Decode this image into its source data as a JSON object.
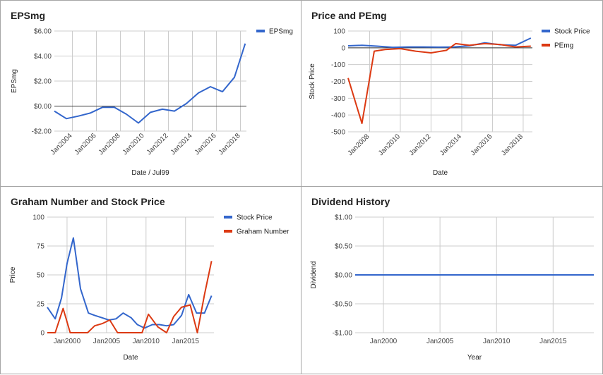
{
  "chart_data": [
    {
      "type": "line",
      "title": "EPSmg",
      "xlabel": "Date / Jul99",
      "ylabel": "EPSmg",
      "xlim": [
        2002.5,
        2018.5
      ],
      "ylim": [
        -2,
        6
      ],
      "yticks": [
        -2,
        0,
        2,
        4,
        6
      ],
      "ytick_labels": [
        "-$2.00",
        "$0.00",
        "$2.00",
        "$4.00",
        "$6.00"
      ],
      "xticks": [
        2004,
        2006,
        2008,
        2010,
        2012,
        2014,
        2016,
        2018
      ],
      "xtick_labels": [
        "Jan2004",
        "Jan2006",
        "Jan2008",
        "Jan2010",
        "Jan2012",
        "Jan2014",
        "Jan2016",
        "Jan2018"
      ],
      "xtick_rotate": true,
      "zero_line": true,
      "grid": true,
      "legend_position": "right",
      "series": [
        {
          "name": "EPSmg",
          "color": "#3366cc",
          "x": [
            2002.5,
            2003.5,
            2004.5,
            2005.5,
            2006.5,
            2007.5,
            2008.5,
            2009.5,
            2010.5,
            2011.5,
            2012.5,
            2013.5,
            2014.5,
            2015.5,
            2016.5,
            2017.5,
            2018.4
          ],
          "y": [
            -0.4,
            -1.0,
            -0.8,
            -0.55,
            -0.1,
            -0.1,
            -0.65,
            -1.35,
            -0.5,
            -0.25,
            -0.4,
            0.2,
            1.05,
            1.55,
            1.15,
            2.3,
            5.0
          ]
        }
      ]
    },
    {
      "type": "line",
      "title": "Price and PEmg",
      "xlabel": "Date",
      "ylabel": "Stock Price",
      "xlim": [
        2006.6,
        2018.6
      ],
      "ylim": [
        -500,
        100
      ],
      "yticks": [
        -500,
        -400,
        -300,
        -200,
        -100,
        0,
        100
      ],
      "ytick_labels": [
        "-500",
        "-400",
        "-300",
        "-200",
        "-100",
        "0",
        "100"
      ],
      "xticks": [
        2008,
        2010,
        2012,
        2014,
        2016,
        2018
      ],
      "xtick_labels": [
        "Jan2008",
        "Jan2010",
        "Jan2012",
        "Jan2014",
        "Jan2016",
        "Jan2018"
      ],
      "xtick_rotate": true,
      "zero_line": true,
      "grid": true,
      "legend_position": "right",
      "series": [
        {
          "name": "Stock Price",
          "color": "#3366cc",
          "x": [
            2006.6,
            2007.5,
            2008.5,
            2009.5,
            2010.5,
            2011.5,
            2012.5,
            2013.5,
            2014.5,
            2015.5,
            2016.5,
            2017.5,
            2018.5
          ],
          "y": [
            12,
            15,
            10,
            3,
            5,
            5,
            4,
            5,
            12,
            30,
            18,
            15,
            58
          ]
        },
        {
          "name": "PEmg",
          "color": "#dc3912",
          "x": [
            2006.6,
            2007.5,
            2008.3,
            2009.0,
            2010.0,
            2011.0,
            2012.0,
            2013.0,
            2013.6,
            2014.5,
            2015.5,
            2016.5,
            2017.5,
            2018.5
          ],
          "y": [
            -180,
            -450,
            -20,
            -10,
            -5,
            -20,
            -30,
            -15,
            25,
            15,
            25,
            20,
            5,
            10
          ]
        }
      ]
    },
    {
      "type": "line",
      "title": "Graham Number and Stock Price",
      "xlabel": "Date",
      "ylabel": "Price",
      "xlim": [
        1997.5,
        2018.6
      ],
      "ylim": [
        0,
        100
      ],
      "yticks": [
        0,
        25,
        50,
        75,
        100
      ],
      "ytick_labels": [
        "0",
        "25",
        "50",
        "75",
        "100"
      ],
      "xticks": [
        2000,
        2005,
        2010,
        2015
      ],
      "xtick_labels": [
        "Jan2000",
        "Jan2005",
        "Jan2010",
        "Jan2015"
      ],
      "xtick_rotate": false,
      "zero_line": false,
      "grid": true,
      "legend_position": "right",
      "series": [
        {
          "name": "Stock Price",
          "color": "#3366cc",
          "x": [
            1997.5,
            1998.5,
            1999.3,
            2000.0,
            2000.8,
            2001.7,
            2002.7,
            2003.5,
            2004.4,
            2005.3,
            2006.2,
            2007.1,
            2008.1,
            2008.9,
            2009.8,
            2010.8,
            2011.7,
            2012.6,
            2013.5,
            2014.5,
            2015.4,
            2016.4,
            2017.4,
            2018.3
          ],
          "y": [
            22,
            12,
            30,
            60,
            82,
            38,
            17,
            15,
            13,
            11,
            12,
            17,
            13,
            7,
            4,
            7,
            7,
            6,
            7,
            15,
            33,
            17,
            17,
            32
          ]
        },
        {
          "name": "Graham Number",
          "color": "#dc3912",
          "x": [
            1997.5,
            1998.5,
            1999.5,
            2000.4,
            2001.5,
            2002.6,
            2003.5,
            2004.5,
            2005.4,
            2006.4,
            2007.5,
            2008.6,
            2009.5,
            2010.3,
            2011.5,
            2012.6,
            2013.5,
            2014.5,
            2015.6,
            2016.5,
            2017.4,
            2018.3
          ],
          "y": [
            0,
            0,
            21,
            0,
            0,
            0,
            6,
            8,
            11,
            0,
            0,
            0,
            0,
            16,
            5,
            0,
            14,
            22,
            24,
            0,
            33,
            62
          ]
        }
      ]
    },
    {
      "type": "line",
      "title": "Dividend History",
      "xlabel": "Year",
      "ylabel": "Dividend",
      "xlim": [
        1997.5,
        2018.6
      ],
      "ylim": [
        -1,
        1
      ],
      "yticks": [
        -1,
        -0.5,
        0,
        0.5,
        1
      ],
      "ytick_labels": [
        "-$1.00",
        "-$0.50",
        "$0.00",
        "$0.50",
        "$1.00"
      ],
      "xticks": [
        2000,
        2005,
        2010,
        2015
      ],
      "xtick_labels": [
        "Jan2000",
        "Jan2005",
        "Jan2010",
        "Jan2015"
      ],
      "xtick_rotate": false,
      "zero_line": false,
      "grid": true,
      "legend_position": "none",
      "series": [
        {
          "color": "#3366cc",
          "x": [
            1997.5,
            2018.6
          ],
          "y": [
            0,
            0
          ]
        }
      ]
    }
  ]
}
